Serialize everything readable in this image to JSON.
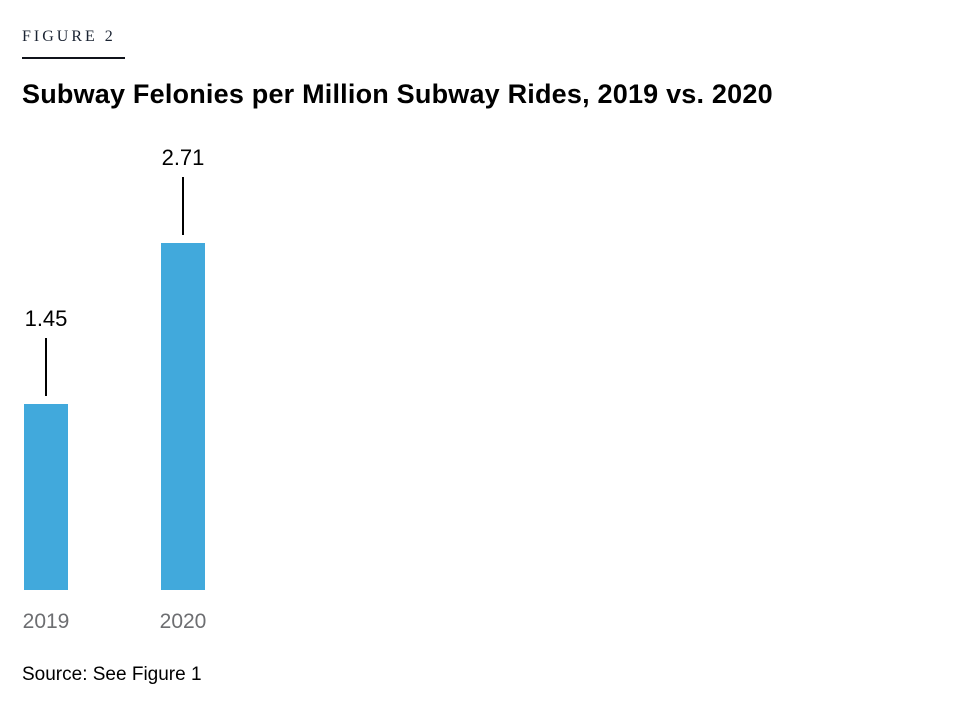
{
  "figure": {
    "label": "FIGURE 2",
    "title": "Subway Felonies per Million Subway Rides, 2019 vs. 2020",
    "source": "Source: See Figure 1"
  },
  "chart_data": {
    "type": "bar",
    "title": "Subway Felonies per Million Subway Rides, 2019 vs. 2020",
    "categories": [
      "2019",
      "2020"
    ],
    "values": [
      1.45,
      2.71
    ],
    "value_labels": [
      "1.45",
      "2.71"
    ],
    "xlabel": "",
    "ylabel": "",
    "ylim": [
      0,
      2.71
    ],
    "grid": false,
    "legend": "none",
    "bar_color": "#41a9dc",
    "axis_label_color": "#6d6e71",
    "value_label_color": "#000000",
    "annotations": "value labels above each bar connected by vertical leader lines"
  }
}
